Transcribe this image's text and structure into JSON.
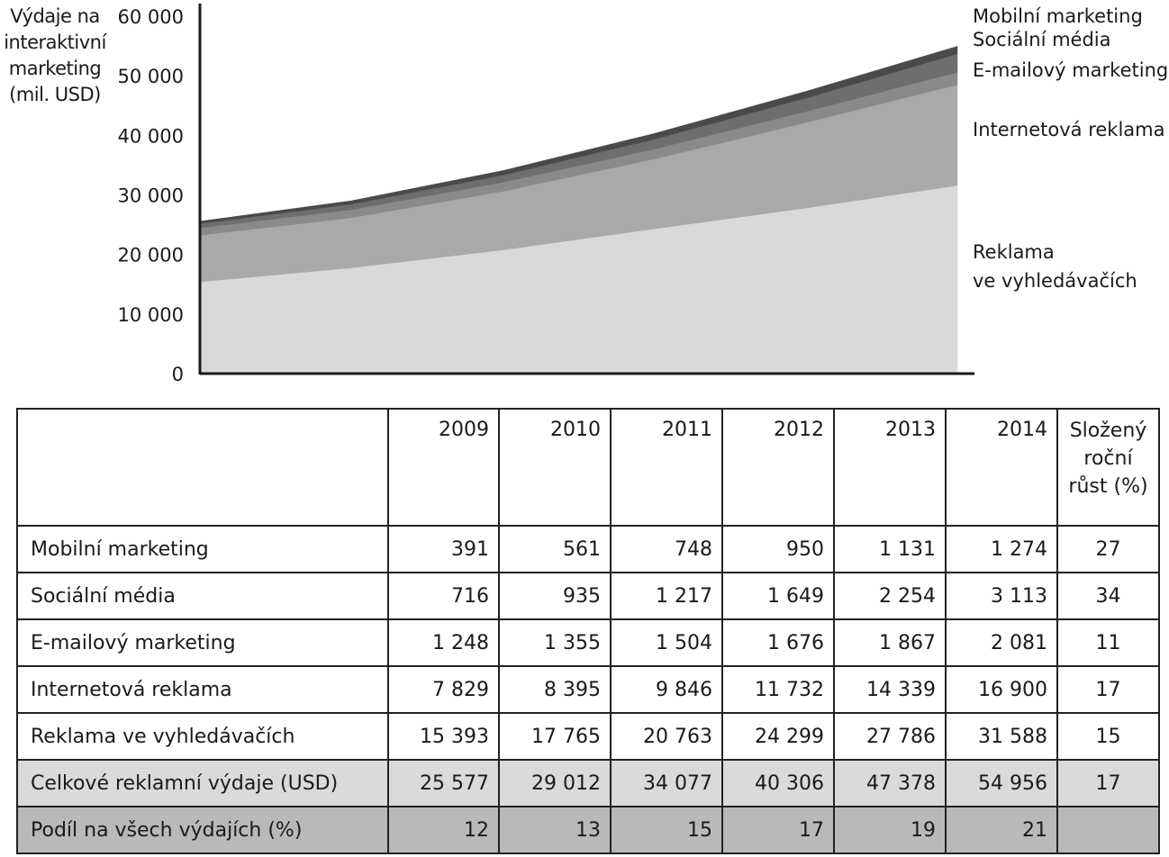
{
  "chart_data": {
    "type": "area",
    "ylabel_lines": [
      "Výdaje na",
      "interaktivní",
      "marketing",
      "(mil. USD)"
    ],
    "y_ticks": [
      "60 000",
      "50 000",
      "40 000",
      "30 000",
      "20 000",
      "10 000",
      "0"
    ],
    "ylim": [
      0,
      60000
    ],
    "x": [
      2009,
      2010,
      2011,
      2012,
      2013,
      2014
    ],
    "stacked": true,
    "series": [
      {
        "name": "Reklama ve vyhledávačích",
        "label_lines": [
          "Reklama",
          "ve vyhledávačích"
        ],
        "values": [
          15393,
          17765,
          20763,
          24299,
          27786,
          31588
        ],
        "color": "#d9d9d9"
      },
      {
        "name": "Internetová reklama",
        "label_lines": [
          "Internetová reklama"
        ],
        "values": [
          7829,
          8395,
          9846,
          11732,
          14339,
          16900
        ],
        "color": "#a9a9a9"
      },
      {
        "name": "E-mailový marketing",
        "label_lines": [
          "E-mailový marketing"
        ],
        "values": [
          1248,
          1355,
          1504,
          1676,
          1867,
          2081
        ],
        "color": "#8a8a8a"
      },
      {
        "name": "Sociální média",
        "label_lines": [
          "Sociální média"
        ],
        "values": [
          716,
          935,
          1217,
          1649,
          2254,
          3113
        ],
        "color": "#6e6e6e"
      },
      {
        "name": "Mobilní marketing",
        "label_lines": [
          "Mobilní marketing"
        ],
        "values": [
          391,
          561,
          748,
          950,
          1131,
          1274
        ],
        "color": "#4a4a4a"
      }
    ],
    "grid": false,
    "legend": "right"
  },
  "table": {
    "years": [
      "2009",
      "2010",
      "2011",
      "2012",
      "2013",
      "2014"
    ],
    "growth_header": "Složený roční růst (%)",
    "rows": [
      {
        "label": "Mobilní marketing",
        "values": [
          "391",
          "561",
          "748",
          "950",
          "1 131",
          "1 274"
        ],
        "growth": "27"
      },
      {
        "label": "Sociální média",
        "values": [
          "716",
          "935",
          "1 217",
          "1 649",
          "2 254",
          "3 113"
        ],
        "growth": "34"
      },
      {
        "label": "E-mailový marketing",
        "values": [
          "1 248",
          "1 355",
          "1 504",
          "1 676",
          "1 867",
          "2 081"
        ],
        "growth": "11"
      },
      {
        "label": "Internetová reklama",
        "values": [
          "7 829",
          "8 395",
          "9 846",
          "11 732",
          "14 339",
          "16 900"
        ],
        "growth": "17"
      },
      {
        "label": "Reklama ve vyhledávačích",
        "values": [
          "15 393",
          "17 765",
          "20 763",
          "24 299",
          "27 786",
          "31 588"
        ],
        "growth": "15"
      }
    ],
    "total_row": {
      "label": "Celkové reklamní výdaje (USD)",
      "values": [
        "25 577",
        "29 012",
        "34 077",
        "40 306",
        "47 378",
        "54 956"
      ],
      "growth": "17"
    },
    "share_row": {
      "label": "Podíl na všech výdajích (%)",
      "values": [
        "12",
        "13",
        "15",
        "17",
        "19",
        "21"
      ],
      "growth": ""
    }
  }
}
